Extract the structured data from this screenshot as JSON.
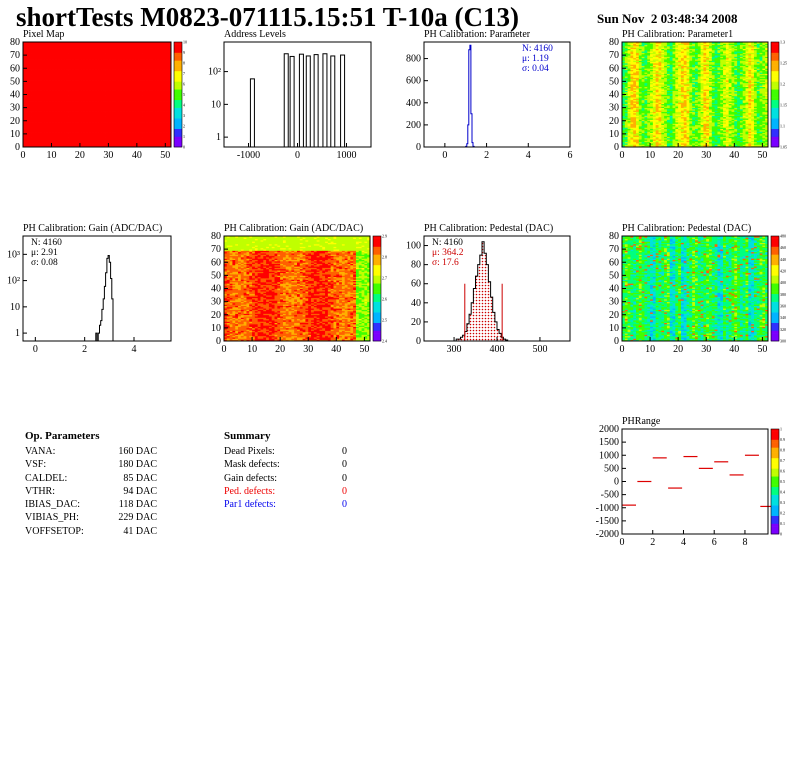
{
  "header": {
    "title": "shortTests M0823-071115.15:51 T-10a (C13)",
    "date": "Sun Nov  2 03:48:34 2008"
  },
  "colors": {
    "palette": [
      "#7a00ff",
      "#3030ff",
      "#00b4ff",
      "#00e0e0",
      "#00ff80",
      "#40ff00",
      "#c0ff00",
      "#ffff00",
      "#ffb000",
      "#ff6000",
      "#ff0000"
    ],
    "hist_line": "#000000",
    "blue": "#0000cc",
    "red": "#cc0000"
  },
  "chart_data": [
    {
      "type": "heatmap",
      "id": "pixel_map",
      "title": "Pixel Map",
      "xlim": [
        0,
        52
      ],
      "ylim": [
        0,
        80
      ],
      "xticks": [
        "0",
        "10",
        "20",
        "30",
        "40",
        "50"
      ],
      "yticks": [
        "0",
        "10",
        "20",
        "30",
        "40",
        "50",
        "60",
        "70",
        "80"
      ],
      "zticks": [
        "0",
        "1",
        "2",
        "3",
        "4",
        "5",
        "6",
        "7",
        "8",
        "9",
        "10"
      ],
      "z": "uniform 10"
    },
    {
      "type": "bar",
      "id": "address_levels",
      "title": "Address Levels",
      "log_y": true,
      "xlim": [
        -1500,
        1500
      ],
      "xticks": [
        "-1000",
        "0",
        "1000"
      ],
      "yticks": [
        "1",
        "10",
        "10²"
      ],
      "peaks": [
        {
          "x": -920,
          "h": 60
        },
        {
          "x": -230,
          "h": 350
        },
        {
          "x": -110,
          "h": 290
        },
        {
          "x": 80,
          "h": 340
        },
        {
          "x": 220,
          "h": 300
        },
        {
          "x": 380,
          "h": 330
        },
        {
          "x": 560,
          "h": 350
        },
        {
          "x": 720,
          "h": 300
        },
        {
          "x": 920,
          "h": 320
        }
      ]
    },
    {
      "type": "bar",
      "id": "ph_cal_param",
      "title": "PH Calibration: Parameter",
      "xlim": [
        -1,
        6
      ],
      "ylim": [
        0,
        950
      ],
      "xticks": [
        "0",
        "2",
        "4",
        "6"
      ],
      "yticks": [
        "0",
        "200",
        "400",
        "600",
        "800"
      ],
      "stats": [
        "N: 4160",
        "μ: 1.19",
        "σ: 0.04"
      ],
      "stats_color": "#0000cc",
      "line_color": "#0000cc",
      "bins": [
        [
          0.95,
          0
        ],
        [
          1.0,
          5
        ],
        [
          1.05,
          30
        ],
        [
          1.1,
          200
        ],
        [
          1.15,
          880
        ],
        [
          1.2,
          920
        ],
        [
          1.25,
          300
        ],
        [
          1.3,
          40
        ],
        [
          1.35,
          5
        ],
        [
          1.4,
          0
        ]
      ]
    },
    {
      "type": "heatmap",
      "id": "ph_cal_param1",
      "title": "PH Calibration: Parameter1",
      "xlim": [
        0,
        52
      ],
      "ylim": [
        0,
        80
      ],
      "xticks": [
        "0",
        "10",
        "20",
        "30",
        "40",
        "50"
      ],
      "yticks": [
        "0",
        "10",
        "20",
        "30",
        "40",
        "50",
        "60",
        "70",
        "80"
      ],
      "zticks": [
        "1.05",
        "1.1",
        "1.15",
        "1.2",
        "1.25",
        "1.3"
      ],
      "pattern": "param1"
    },
    {
      "type": "bar",
      "id": "ph_cal_gain_hist",
      "title": "PH Calibration: Gain (ADC/DAC)",
      "log_y": true,
      "xlim": [
        -0.5,
        5.5
      ],
      "xticks": [
        "0",
        "2",
        "4"
      ],
      "yticks": [
        "1",
        "10",
        "10²",
        "10³"
      ],
      "stats": [
        "N: 4160",
        "μ: 2.91",
        "σ: 0.08"
      ],
      "stats_color": "#000000",
      "line_color": "#000000",
      "bins": [
        [
          2.4,
          0
        ],
        [
          2.45,
          1
        ],
        [
          2.5,
          0
        ],
        [
          2.55,
          1
        ],
        [
          2.6,
          2
        ],
        [
          2.65,
          3
        ],
        [
          2.7,
          8
        ],
        [
          2.75,
          20
        ],
        [
          2.8,
          60
        ],
        [
          2.85,
          200
        ],
        [
          2.9,
          700
        ],
        [
          2.95,
          900
        ],
        [
          3.0,
          500
        ],
        [
          3.05,
          120
        ],
        [
          3.1,
          20
        ],
        [
          3.15,
          0
        ]
      ]
    },
    {
      "type": "heatmap",
      "id": "ph_cal_gain_map",
      "title": "PH Calibration: Gain (ADC/DAC)",
      "xlim": [
        0,
        52
      ],
      "ylim": [
        0,
        80
      ],
      "xticks": [
        "0",
        "10",
        "20",
        "30",
        "40",
        "50"
      ],
      "yticks": [
        "0",
        "10",
        "20",
        "30",
        "40",
        "50",
        "60",
        "70",
        "80"
      ],
      "zticks": [
        "2.4",
        "2.5",
        "2.6",
        "2.7",
        "2.8",
        "2.9"
      ],
      "pattern": "gain"
    },
    {
      "type": "bar",
      "id": "ph_cal_pedestal_hist",
      "title": "PH Calibration: Pedestal (DAC)",
      "xlim": [
        230,
        570
      ],
      "ylim": [
        0,
        110
      ],
      "xticks": [
        "300",
        "400",
        "500"
      ],
      "yticks": [
        "0",
        "20",
        "40",
        "60",
        "80",
        "100"
      ],
      "stats": [
        "N: 4160",
        "μ: 364.2",
        "σ: 17.6"
      ],
      "stats_colors": [
        "#000000",
        "#cc0000",
        "#cc0000"
      ],
      "line_color": "#000000",
      "bins": [
        [
          300,
          0
        ],
        [
          305,
          2
        ],
        [
          310,
          2
        ],
        [
          315,
          4
        ],
        [
          320,
          6
        ],
        [
          325,
          10
        ],
        [
          330,
          18
        ],
        [
          335,
          28
        ],
        [
          340,
          40
        ],
        [
          345,
          55
        ],
        [
          350,
          68
        ],
        [
          355,
          80
        ],
        [
          360,
          90
        ],
        [
          365,
          104
        ],
        [
          370,
          92
        ],
        [
          375,
          80
        ],
        [
          380,
          62
        ],
        [
          385,
          46
        ],
        [
          390,
          30
        ],
        [
          395,
          20
        ],
        [
          400,
          12
        ],
        [
          405,
          8
        ],
        [
          410,
          4
        ],
        [
          415,
          2
        ],
        [
          420,
          1
        ],
        [
          425,
          0
        ]
      ],
      "cuts": [
        {
          "x": 325,
          "h": 60
        },
        {
          "x": 412,
          "h": 60
        }
      ]
    },
    {
      "type": "heatmap",
      "id": "ph_cal_pedestal_map",
      "title": "PH Calibration: Pedestal (DAC)",
      "xlim": [
        0,
        52
      ],
      "ylim": [
        0,
        80
      ],
      "xticks": [
        "0",
        "10",
        "20",
        "30",
        "40",
        "50"
      ],
      "yticks": [
        "0",
        "10",
        "20",
        "30",
        "40",
        "50",
        "60",
        "70",
        "80"
      ],
      "zticks": [
        "300",
        "320",
        "340",
        "360",
        "380",
        "400",
        "420",
        "440",
        "460",
        "480"
      ],
      "pattern": "pedestal"
    },
    {
      "type": "scatter",
      "id": "ph_range",
      "title": "PHRange",
      "xlim": [
        0,
        9.5
      ],
      "ylim": [
        -2000,
        2000
      ],
      "xticks": [
        "0",
        "2",
        "4",
        "6",
        "8"
      ],
      "yticks": [
        "-2000",
        "-1500",
        "-1000",
        "-500",
        "0",
        "500",
        "1000",
        "1500",
        "2000"
      ],
      "zticks": [
        "0",
        "0.1",
        "0.2",
        "0.3",
        "0.4",
        "0.5",
        "0.6",
        "0.7",
        "0.8",
        "0.9",
        "1"
      ],
      "points": [
        [
          0,
          -900
        ],
        [
          1,
          0
        ],
        [
          2,
          900
        ],
        [
          3,
          -250
        ],
        [
          4,
          950
        ],
        [
          5,
          500
        ],
        [
          6,
          750
        ],
        [
          7,
          250
        ],
        [
          8,
          1000
        ],
        [
          9,
          -950
        ]
      ]
    }
  ],
  "op_params": {
    "heading": "Op. Parameters",
    "rows": [
      {
        "name": "VANA:",
        "value": "160 DAC"
      },
      {
        "name": "VSF:",
        "value": "180 DAC"
      },
      {
        "name": "CALDEL:",
        "value": "85 DAC"
      },
      {
        "name": "VTHR:",
        "value": "94 DAC"
      },
      {
        "name": "IBIAS_DAC:",
        "value": "118 DAC"
      },
      {
        "name": "VIBIAS_PH:",
        "value": "229 DAC"
      },
      {
        "name": "VOFFSETOP:",
        "value": "41 DAC"
      }
    ]
  },
  "summary": {
    "heading": "Summary",
    "rows": [
      {
        "name": "Dead Pixels:",
        "value": "0",
        "color": "#000000"
      },
      {
        "name": "Mask defects:",
        "value": "0",
        "color": "#000000"
      },
      {
        "name": "Gain defects:",
        "value": "0",
        "color": "#000000"
      },
      {
        "name": "Ped. defects:",
        "value": "0",
        "color": "#ee0000"
      },
      {
        "name": "Par1 defects:",
        "value": "0",
        "color": "#0000ee"
      }
    ]
  }
}
